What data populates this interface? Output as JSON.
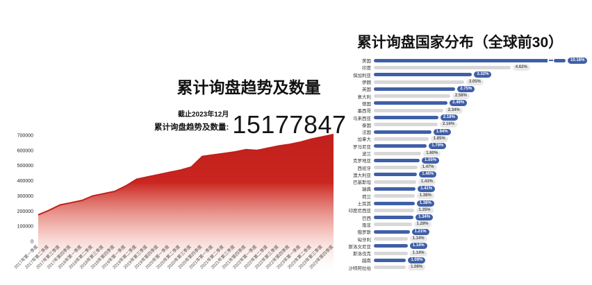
{
  "page": {
    "background": "#ffffff"
  },
  "trend_header": {
    "title": "累计询盘趋势及数量",
    "as_of": "截止2023年12月",
    "total_label": "累计询盘趋势及数量:",
    "total_value": "15177847"
  },
  "countries_header": {
    "title": "累计询盘国家分布（全球前30）"
  },
  "colors": {
    "area_red_top": "#c01f1c",
    "area_red_mid": "#ca2620",
    "area_red_fade": "#ea8b80",
    "area_stroke": "#c2201c",
    "bar_blue": "#3f5fa7",
    "bar_gray": "#d8d8d8",
    "badge_blue_text": "#ffffff",
    "badge_gray_bg": "#e9e9e9",
    "badge_gray_text": "#555555",
    "axis_text": "#333333"
  },
  "chart_data": [
    {
      "type": "area",
      "title": "累计询盘趋势及数量",
      "annotation": "截止2023年12月 累计询盘趋势及数量: 15177847",
      "x": [
        "2017年第一季度",
        "2017年第二季度",
        "2017年第三季度",
        "2017年第四季度",
        "2018年第一季度",
        "2018年第二季度",
        "2018年第三季度",
        "2018年第四季度",
        "2019年第一季度",
        "2019年第二季度",
        "2019年第三季度",
        "2019年第四季度",
        "2020年第一季度",
        "2020年第二季度",
        "2020年第三季度",
        "2020年第四季度",
        "2021年第一季度",
        "2021年第二季度",
        "2021年第三季度",
        "2021年第四季度",
        "2022年第一季度",
        "2022年第二季度",
        "2022年第三季度",
        "2022年第四季度",
        "2023年第一季度",
        "2023年第二季度",
        "2023年第三季度",
        "2023年第四季度"
      ],
      "values": [
        175000,
        205000,
        240000,
        255000,
        270000,
        300000,
        315000,
        330000,
        365000,
        410000,
        425000,
        440000,
        455000,
        470000,
        490000,
        560000,
        570000,
        580000,
        590000,
        605000,
        600000,
        615000,
        630000,
        640000,
        655000,
        675000,
        690000,
        705000
      ],
      "ylim": [
        0,
        700000
      ],
      "y_ticks": [
        0,
        100000,
        200000,
        300000,
        400000,
        500000,
        600000,
        700000
      ],
      "grid": false,
      "legend": "none"
    },
    {
      "type": "bar",
      "orientation": "horizontal",
      "title": "累计询盘国家分布（全球前30）",
      "value_suffix": "%",
      "axis_break_on_first_bar": true,
      "legend": "none",
      "categories": [
        "美国",
        "印度",
        "保加利亚",
        "伊朗",
        "英国",
        "意大利",
        "德国",
        "墨西哥",
        "马来西亚",
        "泰国",
        "法国",
        "加拿大",
        "罗马尼亚",
        "波兰",
        "克罗地亚",
        "西班牙",
        "澳大利亚",
        "巴基斯坦",
        "瑞典",
        "荷兰",
        "土耳其",
        "印度尼西亚",
        "巴西",
        "南非",
        "俄罗斯",
        "匈牙利",
        "斯洛文尼亚",
        "斯洛伐克",
        "越南",
        "沙特阿拉伯"
      ],
      "values": [
        10.18,
        4.62,
        3.32,
        3.05,
        2.75,
        2.58,
        2.49,
        2.34,
        2.18,
        2.16,
        1.94,
        1.85,
        1.79,
        1.6,
        1.55,
        1.47,
        1.46,
        1.43,
        1.41,
        1.38,
        1.38,
        1.35,
        1.34,
        1.28,
        1.21,
        1.14,
        1.14,
        1.14,
        1.09,
        1.08
      ]
    }
  ]
}
